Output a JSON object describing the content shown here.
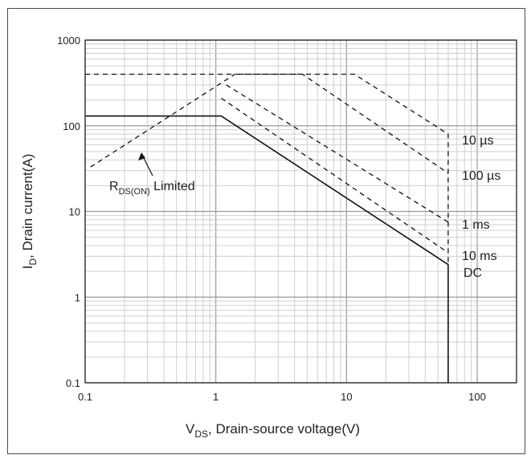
{
  "chart_data": {
    "type": "line",
    "title": "",
    "xlabel": {
      "main": "V",
      "sub": "DS",
      "rest": ", Drain-source voltage(V)"
    },
    "ylabel": {
      "main": "I",
      "sub": "D",
      "rest": ", Drain current(A)"
    },
    "x_scale": "log",
    "y_scale": "log",
    "xlim": [
      0.1,
      200
    ],
    "ylim": [
      0.1,
      1000
    ],
    "x_ticks": [
      {
        "value": 0.1,
        "label": "0.1"
      },
      {
        "value": 1,
        "label": "1"
      },
      {
        "value": 10,
        "label": "10"
      },
      {
        "value": 100,
        "label": "100"
      }
    ],
    "y_ticks": [
      {
        "value": 0.1,
        "label": "0.1"
      },
      {
        "value": 1,
        "label": "1"
      },
      {
        "value": 10,
        "label": "10"
      },
      {
        "value": 100,
        "label": "100"
      },
      {
        "value": 1000,
        "label": "1000"
      }
    ],
    "grid": true,
    "series": [
      {
        "name": "10 µs",
        "style": "dashed",
        "points": [
          [
            0.1,
            400
          ],
          [
            11.5,
            400
          ],
          [
            60,
            80
          ],
          [
            60,
            2.4
          ]
        ]
      },
      {
        "name": "100 µs",
        "style": "dashed",
        "points": [
          [
            1.5,
            400
          ],
          [
            4.6,
            400
          ],
          [
            60,
            28
          ]
        ]
      },
      {
        "name": "1 ms",
        "style": "dashed",
        "points": [
          [
            1.2,
            300
          ],
          [
            60,
            7.5
          ]
        ]
      },
      {
        "name": "10 ms",
        "style": "dashed",
        "points": [
          [
            1.1,
            210
          ],
          [
            60,
            3.3
          ]
        ]
      },
      {
        "name": "DC",
        "style": "solid",
        "points": [
          [
            0.1,
            130
          ],
          [
            1.1,
            130
          ],
          [
            60,
            2.4
          ],
          [
            60,
            0.1
          ]
        ]
      },
      {
        "name": "RDS(ON) Limited",
        "style": "dashed",
        "points": [
          [
            0.11,
            33
          ],
          [
            1.4,
            400
          ]
        ]
      }
    ],
    "annotations": {
      "rdson": {
        "main": "R",
        "sub": "DS(ON)",
        "rest": " Limited"
      },
      "labels": [
        {
          "series": "10 µs",
          "text": "10 µs"
        },
        {
          "series": "100 µs",
          "text": "100 µs"
        },
        {
          "series": "1 ms",
          "text": "1 ms"
        },
        {
          "series": "10 ms",
          "text": "10 ms"
        },
        {
          "series": "DC",
          "text": "DC"
        }
      ]
    }
  }
}
